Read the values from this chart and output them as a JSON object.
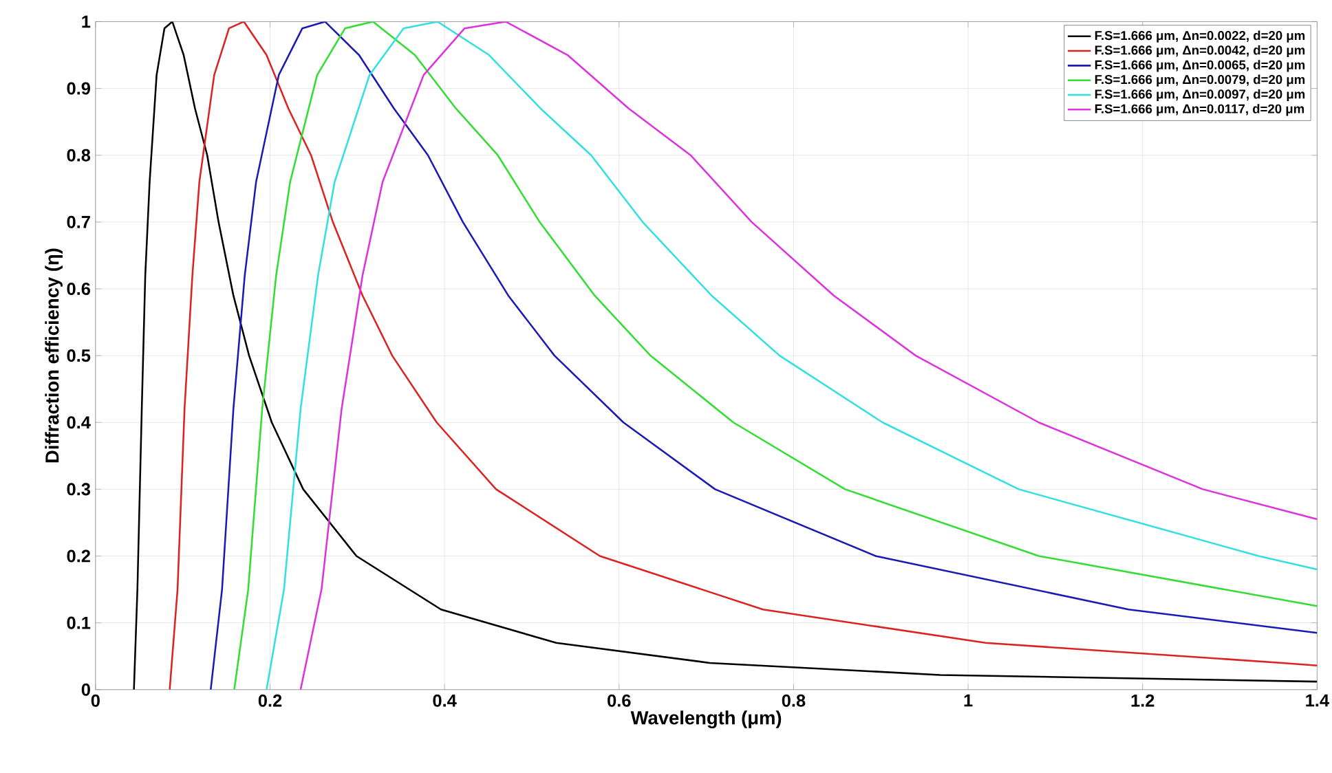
{
  "chart_data": {
    "type": "line",
    "xlabel": "Wavelength (μm)",
    "ylabel": "Diffraction efficiency (η)",
    "xlim": [
      0,
      1.4
    ],
    "ylim": [
      0,
      1
    ],
    "xticks": [
      0,
      0.2,
      0.4,
      0.6,
      0.8,
      1,
      1.2,
      1.4
    ],
    "yticks": [
      0,
      0.1,
      0.2,
      0.3,
      0.4,
      0.5,
      0.6,
      0.7,
      0.8,
      0.9,
      1
    ],
    "grid": true,
    "legend": "top right",
    "marker": "none",
    "line_style": "solid",
    "series": [
      {
        "name": "F.S=1.666 μm, Δn=0.0022, d=20 μm",
        "color": "#000000",
        "x": [
          0.044,
          0.048,
          0.053,
          0.057,
          0.062,
          0.07,
          0.079,
          0.088,
          0.101,
          0.114,
          0.128,
          0.141,
          0.158,
          0.176,
          0.202,
          0.238,
          0.299,
          0.396,
          0.528,
          0.704,
          0.968,
          1.4
        ],
        "values": [
          0,
          0.15,
          0.42,
          0.62,
          0.76,
          0.92,
          0.99,
          1,
          0.95,
          0.87,
          0.8,
          0.7,
          0.59,
          0.5,
          0.4,
          0.3,
          0.2,
          0.12,
          0.07,
          0.04,
          0.022,
          0.012
        ]
      },
      {
        "name": "F.S=1.666 μm, Δn=0.0042, d=20 μm",
        "color": "#dd2222",
        "x": [
          0.085,
          0.094,
          0.102,
          0.111,
          0.119,
          0.136,
          0.153,
          0.17,
          0.196,
          0.221,
          0.247,
          0.272,
          0.306,
          0.34,
          0.391,
          0.459,
          0.578,
          0.765,
          1.02,
          1.36,
          1.4
        ],
        "values": [
          0,
          0.15,
          0.42,
          0.62,
          0.76,
          0.92,
          0.99,
          1,
          0.95,
          0.87,
          0.8,
          0.7,
          0.59,
          0.5,
          0.4,
          0.3,
          0.2,
          0.12,
          0.07,
          0.04,
          0.036
        ]
      },
      {
        "name": "F.S=1.666 μm, Δn=0.0065, d=20 μm",
        "color": "#1a1ab4",
        "x": [
          0.132,
          0.145,
          0.158,
          0.171,
          0.184,
          0.21,
          0.237,
          0.263,
          0.302,
          0.342,
          0.381,
          0.421,
          0.473,
          0.526,
          0.605,
          0.71,
          0.894,
          1.184,
          1.4
        ],
        "values": [
          0,
          0.15,
          0.42,
          0.62,
          0.76,
          0.92,
          0.99,
          1,
          0.95,
          0.87,
          0.8,
          0.7,
          0.59,
          0.5,
          0.4,
          0.3,
          0.2,
          0.12,
          0.085
        ]
      },
      {
        "name": "F.S=1.666 μm, Δn=0.0079, d=20 μm",
        "color": "#33dd33",
        "x": [
          0.159,
          0.175,
          0.191,
          0.207,
          0.223,
          0.254,
          0.286,
          0.318,
          0.366,
          0.413,
          0.461,
          0.509,
          0.572,
          0.636,
          0.731,
          0.859,
          1.081,
          1.4
        ],
        "values": [
          0,
          0.15,
          0.42,
          0.62,
          0.76,
          0.92,
          0.99,
          1,
          0.95,
          0.87,
          0.8,
          0.7,
          0.59,
          0.5,
          0.4,
          0.3,
          0.2,
          0.125
        ]
      },
      {
        "name": "F.S=1.666 μm, Δn=0.0097, d=20 μm",
        "color": "#33e0e0",
        "x": [
          0.196,
          0.216,
          0.235,
          0.255,
          0.274,
          0.314,
          0.353,
          0.392,
          0.451,
          0.51,
          0.568,
          0.627,
          0.706,
          0.784,
          0.902,
          1.058,
          1.333,
          1.4
        ],
        "values": [
          0,
          0.15,
          0.42,
          0.62,
          0.76,
          0.92,
          0.99,
          1,
          0.95,
          0.87,
          0.8,
          0.7,
          0.59,
          0.5,
          0.4,
          0.3,
          0.2,
          0.18
        ]
      },
      {
        "name": "F.S=1.666 μm, Δn=0.0117, d=20 μm",
        "color": "#dd33dd",
        "x": [
          0.235,
          0.259,
          0.282,
          0.306,
          0.329,
          0.376,
          0.423,
          0.47,
          0.541,
          0.611,
          0.682,
          0.752,
          0.846,
          0.94,
          1.081,
          1.269,
          1.4
        ],
        "values": [
          0,
          0.15,
          0.42,
          0.62,
          0.76,
          0.92,
          0.99,
          1,
          0.95,
          0.87,
          0.8,
          0.7,
          0.59,
          0.5,
          0.4,
          0.3,
          0.255
        ]
      }
    ]
  }
}
